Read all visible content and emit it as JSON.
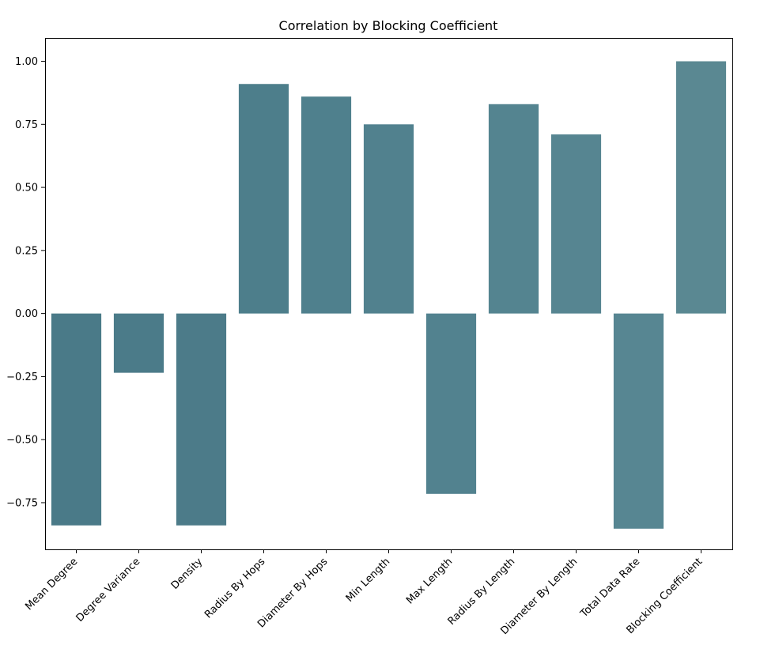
{
  "chart_data": {
    "type": "bar",
    "title": "Correlation by Blocking Coefficient",
    "xlabel": "",
    "ylabel": "",
    "categories": [
      "Mean Degree",
      "Degree Variance",
      "Density",
      "Radius By Hops",
      "Diameter By Hops",
      "Min Length",
      "Max Length",
      "Radius By Length",
      "Diameter By Length",
      "Total Data Rate",
      "Blocking Coefficient"
    ],
    "values": [
      -0.84,
      -0.235,
      -0.84,
      0.91,
      0.86,
      0.75,
      -0.715,
      0.83,
      0.71,
      -0.853,
      1.0
    ],
    "bar_colors": [
      "#4a7a88",
      "#4b7b89",
      "#4c7b89",
      "#4d7e8b",
      "#4f808d",
      "#51818e",
      "#52828f",
      "#548490",
      "#568591",
      "#578692",
      "#5a8892"
    ],
    "ylim": [
      -0.935,
      1.0925
    ],
    "yticks": [
      1.0,
      0.75,
      0.5,
      0.25,
      0.0,
      -0.25,
      -0.5,
      -0.75
    ],
    "ytick_labels": [
      "1.00",
      "0.75",
      "0.50",
      "0.25",
      "0.00",
      "−0.25",
      "−0.50",
      "−0.75"
    ],
    "grid": false,
    "legend": "none"
  }
}
